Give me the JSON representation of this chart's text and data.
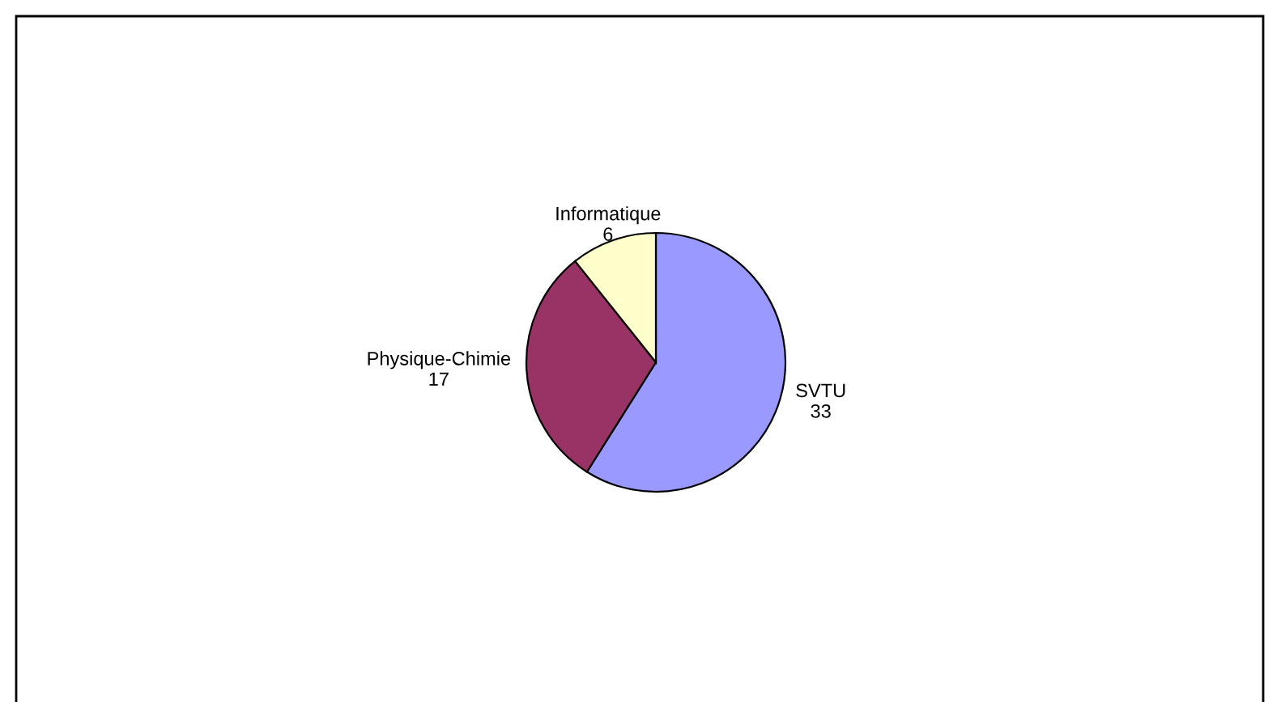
{
  "chart_data": {
    "type": "pie",
    "categories": [
      "SVTU",
      "Physique-Chimie",
      "Informatique"
    ],
    "values": [
      33,
      17,
      6
    ],
    "colors": [
      "#9999ff",
      "#993366",
      "#ffffcc"
    ],
    "data_labels": true,
    "legend": false
  }
}
